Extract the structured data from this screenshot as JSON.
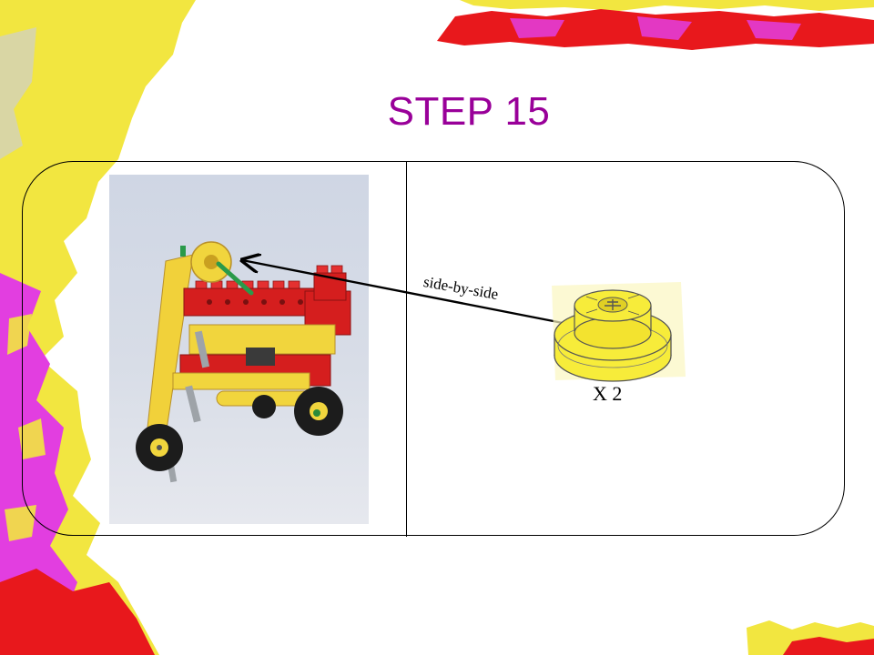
{
  "slide": {
    "title": "STEP 15",
    "connection_label": "side-by-side",
    "quantity_label": "X 2"
  },
  "colors": {
    "title": "#990099",
    "deco_yellow": "#f2e640",
    "deco_magenta": "#e23ee0",
    "deco_red": "#e8181c",
    "part_yellow": "#f7ec3a"
  },
  "icons": {
    "model_photo": "lego-tricycle-model",
    "part": "yellow-pulley-wheel"
  }
}
